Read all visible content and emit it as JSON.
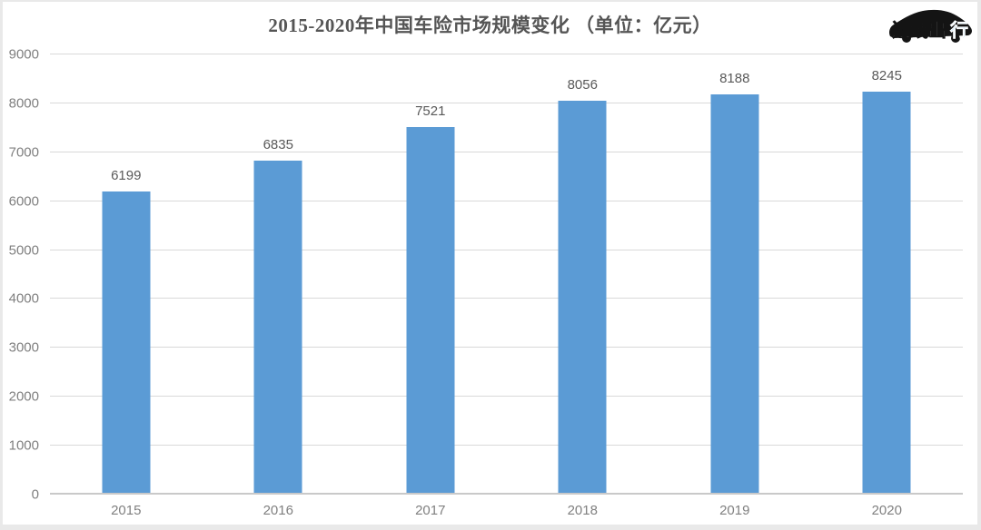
{
  "logo": {
    "name": "连线出行",
    "text_main": "连线出",
    "text_accent": "行",
    "accent_color": "#4aa3dc"
  },
  "chart_data": {
    "type": "bar",
    "title": "2015-2020年中国车险市场规模变化 （单位：亿元）",
    "categories": [
      "2015",
      "2016",
      "2017",
      "2018",
      "2019",
      "2020"
    ],
    "values": [
      6199,
      6835,
      7521,
      8056,
      8188,
      8245
    ],
    "unit": "亿元",
    "xlabel": "",
    "ylabel": "",
    "ylim": [
      0,
      9000
    ],
    "yticks": [
      0,
      1000,
      2000,
      3000,
      4000,
      5000,
      6000,
      7000,
      8000,
      9000
    ],
    "grid": true,
    "legend": "none",
    "bar_color": "#5B9BD5",
    "value_label_color": "#595959",
    "tick_label_color": "#808080",
    "gridline_color": "#d9d9d9",
    "title_color": "#555555"
  }
}
